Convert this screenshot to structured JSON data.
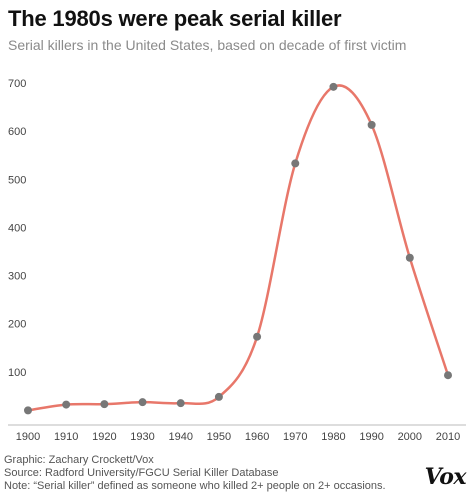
{
  "header": {
    "title": "The 1980s were peak serial killer",
    "subtitle": "Serial killers in the United States, based on decade of first victim"
  },
  "footer": {
    "graphic": "Graphic: Zachary Crockett/Vox",
    "source": "Source: Radford University/FGCU Serial Killer Database",
    "note": "Note: “Serial killer” defined as someone who killed 2+ people on 2+ occasions."
  },
  "logo": "Vox",
  "chart_data": {
    "type": "line",
    "title": "The 1980s were peak serial killer",
    "subtitle": "Serial killers in the United States, based on decade of first victim",
    "x": [
      1900,
      1910,
      1920,
      1930,
      1940,
      1950,
      1960,
      1970,
      1980,
      1990,
      2000,
      2010
    ],
    "values": [
      20,
      32,
      33,
      37,
      35,
      48,
      173,
      533,
      692,
      613,
      337,
      93
    ],
    "xlabel": "",
    "ylabel": "",
    "xlim": [
      1900,
      2010
    ],
    "ylim": [
      0,
      700
    ],
    "yticks": [
      100,
      200,
      300,
      400,
      500,
      600,
      700
    ],
    "xticks": [
      1900,
      1910,
      1920,
      1930,
      1940,
      1950,
      1960,
      1970,
      1980,
      1990,
      2000,
      2010
    ],
    "grid": false,
    "line_color": "#e8776a",
    "marker_color": "#777777",
    "axis_color": "#bbbbbb"
  }
}
